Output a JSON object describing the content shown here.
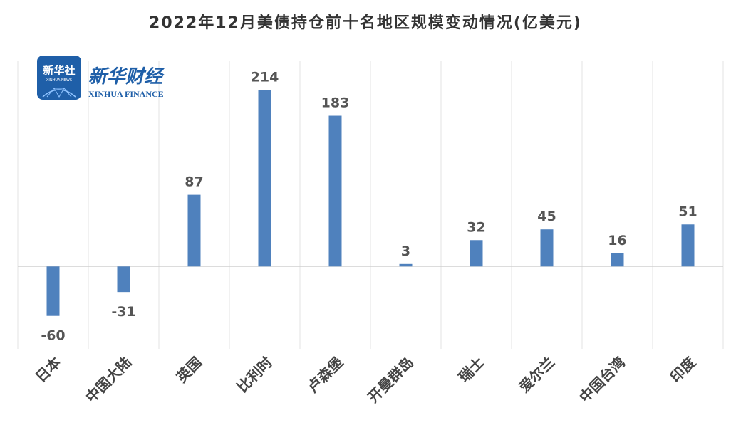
{
  "chart_data": {
    "type": "bar",
    "title": "2022年12月美债持仓前十名地区规模变动情况(亿美元)",
    "categories": [
      "日本",
      "中国大陆",
      "英国",
      "比利时",
      "卢森堡",
      "开曼群岛",
      "瑞士",
      "爱尔兰",
      "中国台湾",
      "印度"
    ],
    "values": [
      -60,
      -31,
      87,
      214,
      183,
      3,
      32,
      45,
      16,
      51
    ],
    "ylim": [
      -100,
      250
    ],
    "grid": "vertical",
    "bar_color": "#4f81bd",
    "xlabel": "",
    "ylabel": ""
  },
  "logo": {
    "badge_text": "新华社",
    "badge_sub": "XINHUA NEWS",
    "brand_cn": "新华财经",
    "brand_en": "XINHUA FINANCE"
  }
}
